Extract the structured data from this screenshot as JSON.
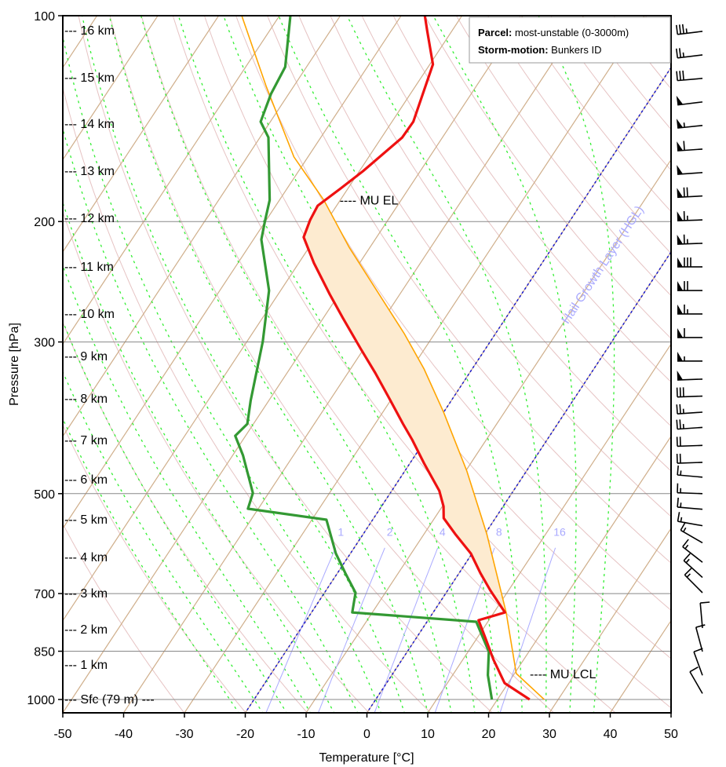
{
  "chart_data": {
    "type": "line",
    "subtype": "skew-t log-p",
    "xlabel": "Temperature [°C]",
    "ylabel": "Pressure [hPa]",
    "xlim": [
      -50,
      50
    ],
    "ylim": [
      1046,
      100
    ],
    "x_ticks": [
      "-50",
      "-40",
      "-30",
      "-20",
      "-10",
      "0",
      "10",
      "20",
      "30",
      "40",
      "50"
    ],
    "x_tick_values": [
      -50,
      -40,
      -30,
      -20,
      -10,
      0,
      10,
      20,
      30,
      40,
      50
    ],
    "y_ticks": [
      "100",
      "200",
      "300",
      "500",
      "700",
      "850",
      "1000"
    ],
    "y_tick_values": [
      100,
      200,
      300,
      500,
      700,
      850,
      1000
    ],
    "legend": {
      "parcel_label": "Parcel:",
      "parcel_value": "most-unstable (0-3000m)",
      "storm_label": "Storm-motion:",
      "storm_value": "Bunkers ID"
    },
    "annotations": {
      "el": "---- MU EL",
      "el_p": 186,
      "lcl": "---- MU LCL",
      "lcl_p": 916,
      "hgl": "Hail Growth Layer (HGL)",
      "hgl_isotherms": [
        0,
        -20
      ]
    },
    "mixing_ratio_labels": [
      "1",
      "2",
      "4",
      "8",
      "16"
    ],
    "mixing_ratios": [
      1,
      2,
      4,
      8,
      16
    ],
    "heights": [
      {
        "label": "--- 16 km",
        "p": 104.9
      },
      {
        "label": "--- 15 km",
        "p": 122.9
      },
      {
        "label": "--- 14 km",
        "p": 143.7
      },
      {
        "label": "--- 13 km",
        "p": 168.4
      },
      {
        "label": "--- 12 km",
        "p": 197.3
      },
      {
        "label": "--- 11 km",
        "p": 232.4
      },
      {
        "label": "--- 10 km",
        "p": 272.4
      },
      {
        "label": "--- 9 km",
        "p": 314.2
      },
      {
        "label": "--- 8 km",
        "p": 362.4
      },
      {
        "label": "--- 7 km",
        "p": 416.9
      },
      {
        "label": "--- 6 km",
        "p": 475.8
      },
      {
        "label": "--- 5 km",
        "p": 544.5
      },
      {
        "label": "--- 4 km",
        "p": 618.1
      },
      {
        "label": "--- 3 km",
        "p": 698.0
      },
      {
        "label": "--- 2 km",
        "p": 788.2
      },
      {
        "label": "--- 1 km",
        "p": 887.9
      },
      {
        "label": "--- Sfc (79 m) ---",
        "p": 997.4
      }
    ],
    "series": [
      {
        "name": "temperature",
        "color": "#ee1111",
        "p": [
          100,
          105.4,
          117.8,
          142.9,
          150.7,
          168.8,
          178.9,
          189.6,
          198.9,
          210.8,
          230,
          255.6,
          276.7,
          307.6,
          333,
          360.5,
          395.4,
          416.9,
          451.3,
          495.1,
          522,
          543,
          572.6,
          611.6,
          653.5,
          692.4,
          745.9,
          765.6,
          807.3,
          873.9,
          946.2,
          1000
        ],
        "T": [
          -66.1,
          -64.0,
          -59.5,
          -56.5,
          -56.6,
          -59.4,
          -61.2,
          -63.1,
          -62.8,
          -62.0,
          -57.5,
          -51.5,
          -46.8,
          -40.4,
          -35.5,
          -30.8,
          -25.4,
          -22.2,
          -17.7,
          -12.2,
          -9.8,
          -8.5,
          -4.9,
          -0.2,
          3.5,
          7.0,
          11.8,
          8.3,
          11.0,
          15.0,
          19.4,
          25.3
        ]
      },
      {
        "name": "dewpoint",
        "color": "#339933",
        "p": [
          100,
          118.8,
          130.2,
          142.9,
          150.7,
          186.1,
          198.9,
          212.5,
          252.3,
          299.6,
          365.3,
          395.4,
          411.5,
          439.5,
          498.9,
          526,
          545.9,
          611.6,
          653.5,
          698.0,
          745.9,
          769.7,
          851.1,
          921.3,
          1000
        ],
        "T": [
          -88.2,
          -83.5,
          -82.9,
          -81.6,
          -78.6,
          -71.6,
          -70.2,
          -68.7,
          -61.9,
          -57.4,
          -53.0,
          -51.0,
          -51.7,
          -48.3,
          -42.6,
          -41.7,
          -27.6,
          -22.4,
          -18.7,
          -14.9,
          -13.3,
          8.1,
          13.4,
          15.8,
          19.1
        ]
      },
      {
        "name": "parcel",
        "color": "#ffa500",
        "p": [
          1000,
          916.4,
          745.9,
          572.6,
          463.4,
          380.1,
          328.6,
          291.7,
          252.3,
          218.2,
          186.1,
          160.9,
          126.9,
          100
        ],
        "T": [
          27.7,
          20.3,
          12.0,
          0.3,
          -9.8,
          -20.0,
          -27.9,
          -35.0,
          -44.2,
          -53.4,
          -62.7,
          -72.3,
          -84.5,
          -96.2
        ]
      }
    ],
    "cape_fill_color": "#fdebd0",
    "winds": [
      {
        "p": 105.4,
        "dir": 263,
        "spd": 35
      },
      {
        "p": 114.1,
        "dir": 263,
        "spd": 25
      },
      {
        "p": 123.5,
        "dir": 265,
        "spd": 30
      },
      {
        "p": 133.7,
        "dir": 263,
        "spd": 50
      },
      {
        "p": 144.7,
        "dir": 264,
        "spd": 55
      },
      {
        "p": 156.7,
        "dir": 266,
        "spd": 60
      },
      {
        "p": 169.6,
        "dir": 266,
        "spd": 50
      },
      {
        "p": 183.5,
        "dir": 267,
        "spd": 70
      },
      {
        "p": 198.9,
        "dir": 268,
        "spd": 65
      },
      {
        "p": 215.2,
        "dir": 268,
        "spd": 65
      },
      {
        "p": 233.0,
        "dir": 270,
        "spd": 80
      },
      {
        "p": 252.3,
        "dir": 270,
        "spd": 70
      },
      {
        "p": 273.0,
        "dir": 270,
        "spd": 65
      },
      {
        "p": 295.6,
        "dir": 270,
        "spd": 60
      },
      {
        "p": 320.0,
        "dir": 270,
        "spd": 55
      },
      {
        "p": 340.0,
        "dir": 268,
        "spd": 50
      },
      {
        "p": 360.0,
        "dir": 268,
        "spd": 30
      },
      {
        "p": 380.0,
        "dir": 266,
        "spd": 25
      },
      {
        "p": 400.0,
        "dir": 266,
        "spd": 25
      },
      {
        "p": 425.0,
        "dir": 268,
        "spd": 20
      },
      {
        "p": 450.0,
        "dir": 268,
        "spd": 20
      },
      {
        "p": 473.0,
        "dir": 275,
        "spd": 15
      },
      {
        "p": 500.0,
        "dir": 272,
        "spd": 15
      },
      {
        "p": 527.0,
        "dir": 275,
        "spd": 15
      },
      {
        "p": 557.0,
        "dir": 280,
        "spd": 15
      },
      {
        "p": 590.0,
        "dir": 300,
        "spd": 15
      },
      {
        "p": 630.0,
        "dir": 308,
        "spd": 15
      },
      {
        "p": 663.0,
        "dir": 312,
        "spd": 15
      },
      {
        "p": 698.0,
        "dir": 315,
        "spd": 15
      },
      {
        "p": 786.0,
        "dir": 355,
        "spd": 10
      },
      {
        "p": 851.0,
        "dir": 345,
        "spd": 10
      },
      {
        "p": 922.0,
        "dir": 340,
        "spd": 10
      },
      {
        "p": 980.0,
        "dir": 330,
        "spd": 10
      }
    ]
  }
}
